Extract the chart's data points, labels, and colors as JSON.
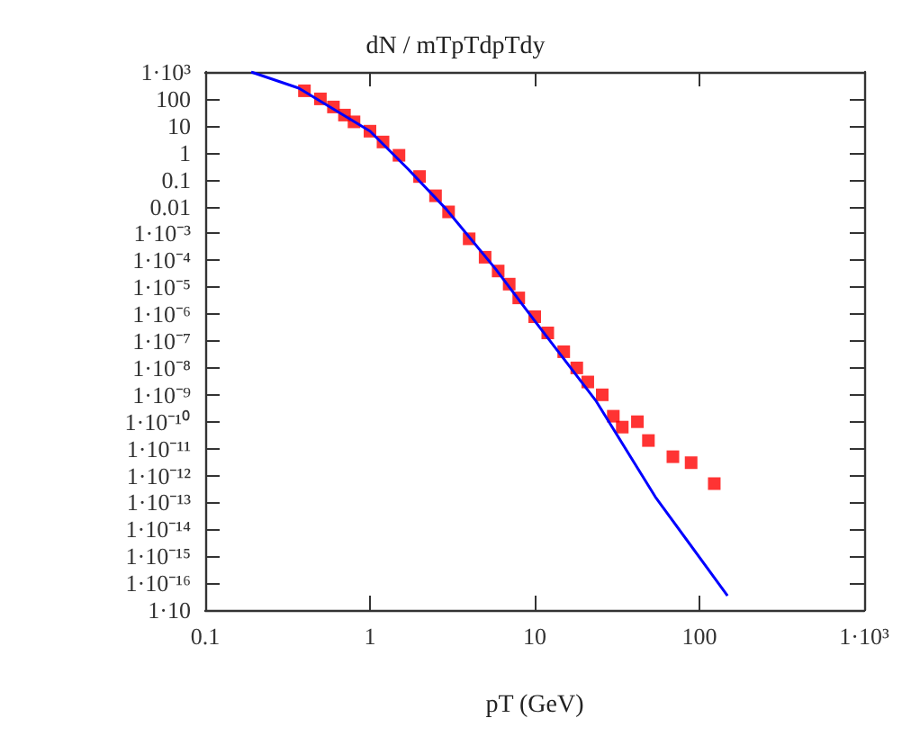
{
  "chart_data": {
    "type": "scatter",
    "title": "dN / mTpTdpTdy",
    "xlabel": "pT (GeV)",
    "log": "xy",
    "xlim": [
      0.1,
      1000
    ],
    "xticks": [
      0.1,
      1,
      10,
      100,
      {
        "value": 1000,
        "label": "1·10³"
      }
    ],
    "ylim": [
      1e-17,
      1000
    ],
    "yticks": [
      {
        "value": 1000,
        "label": "1·10³"
      },
      100,
      10,
      1,
      0.1,
      0.01,
      {
        "value": 0.001,
        "label": "1·10⁻³"
      },
      {
        "value": 0.0001,
        "label": "1·10⁻⁴"
      },
      {
        "value": 1e-05,
        "label": "1·10⁻⁵"
      },
      {
        "value": 1e-06,
        "label": "1·10⁻⁶"
      },
      {
        "value": 1e-07,
        "label": "1·10⁻⁷"
      },
      {
        "value": 1e-08,
        "label": "1·10⁻⁸"
      },
      {
        "value": 1e-09,
        "label": "1·10⁻⁹"
      },
      {
        "value": 1e-10,
        "label": "1·10⁻¹⁰"
      },
      {
        "value": 1e-11,
        "label": "1·10⁻¹¹"
      },
      {
        "value": 1e-12,
        "label": "1·10⁻¹²"
      },
      {
        "value": 1e-13,
        "label": "1·10⁻¹³"
      },
      {
        "value": 1e-14,
        "label": "1·10⁻¹⁴"
      },
      {
        "value": 1e-15,
        "label": "1·10⁻¹⁵"
      },
      {
        "value": 1e-16,
        "label": "1·10⁻¹⁶"
      },
      {
        "value": 1e-17,
        "label": "1·10"
      }
    ],
    "grid": false,
    "series": [
      {
        "marker": "square",
        "color": "#ff0000",
        "x": [
          0.4,
          0.5,
          0.6,
          0.7,
          0.8,
          1.0,
          1.2,
          1.5,
          2,
          2.5,
          3,
          4,
          5,
          6,
          7,
          8,
          10,
          12,
          15,
          18,
          21,
          25.7,
          30,
          34,
          42,
          49,
          69,
          89,
          123
        ],
        "values": [
          200,
          100,
          50,
          25,
          14,
          6.3,
          2.5,
          0.8,
          0.13,
          0.025,
          0.0063,
          0.00063,
          0.00013,
          4e-05,
          1.3e-05,
          4e-06,
          8e-07,
          2e-07,
          4e-08,
          1e-08,
          3e-09,
          1e-09,
          1.6e-10,
          6.3e-11,
          1e-10,
          2e-11,
          5e-12,
          3e-12,
          5e-13
        ]
      },
      {
        "type": "line",
        "marker": "none",
        "color": "#0000ff",
        "x": [
          0.19,
          0.37,
          1,
          1.7,
          2.9,
          5.8,
          10,
          23.4,
          54,
          148
        ],
        "values": [
          1000,
          250,
          6.3,
          0.25,
          0.008,
          4.7e-05,
          5.6e-07,
          6.3e-10,
          1.6e-13,
          3.4e-17
        ]
      }
    ]
  }
}
